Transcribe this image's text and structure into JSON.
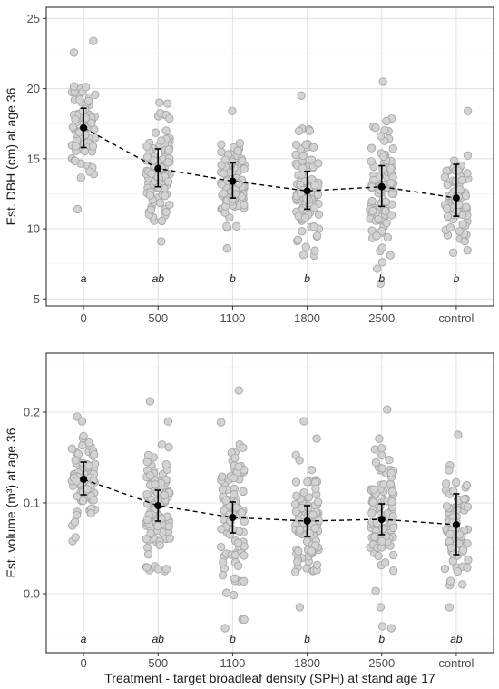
{
  "chart_data": [
    {
      "type": "scatter",
      "categories": [
        "0",
        "500",
        "1100",
        "1800",
        "2500",
        "control"
      ],
      "ylabel": "Est. DBH (cm) at age 36",
      "xlabel": "",
      "ylim": [
        4.5,
        25.8
      ],
      "yticks": [
        5,
        10,
        15,
        20,
        25
      ],
      "grid": true,
      "legend": "none",
      "means": [
        17.2,
        14.3,
        13.4,
        12.7,
        13.0,
        12.2
      ],
      "lower": [
        15.8,
        13.0,
        12.2,
        11.4,
        11.6,
        10.9
      ],
      "upper": [
        18.6,
        15.7,
        14.7,
        14.1,
        14.5,
        14.6
      ],
      "letters": [
        "a",
        "ab",
        "b",
        "b",
        "b",
        "b"
      ],
      "points_range": [
        [
          11.4,
          23.4
        ],
        [
          9.1,
          19.0
        ],
        [
          8.6,
          18.4
        ],
        [
          8.1,
          19.5
        ],
        [
          6.1,
          20.5
        ],
        [
          8.3,
          18.4
        ]
      ],
      "n_points": [
        85,
        110,
        95,
        100,
        100,
        70
      ]
    },
    {
      "type": "scatter",
      "categories": [
        "0",
        "500",
        "1100",
        "1800",
        "2500",
        "control"
      ],
      "ylabel": "Est. volume (m³) at age 36",
      "xlabel": "Treatment - target broadleaf density (SPH) at stand age 17",
      "ylim": [
        -0.065,
        0.265
      ],
      "yticks": [
        0.0,
        0.1,
        0.2
      ],
      "ytick_labels": [
        "0.0",
        "0.1",
        "0.2"
      ],
      "grid": true,
      "legend": "none",
      "means": [
        0.126,
        0.097,
        0.084,
        0.08,
        0.082,
        0.076
      ],
      "lower": [
        0.109,
        0.08,
        0.067,
        0.063,
        0.065,
        0.043
      ],
      "upper": [
        0.145,
        0.114,
        0.101,
        0.097,
        0.099,
        0.11
      ],
      "letters": [
        "a",
        "ab",
        "b",
        "b",
        "b",
        "ab"
      ],
      "points_range": [
        [
          0.058,
          0.195
        ],
        [
          0.025,
          0.212
        ],
        [
          -0.038,
          0.224
        ],
        [
          -0.015,
          0.19
        ],
        [
          -0.038,
          0.203
        ],
        [
          -0.015,
          0.175
        ]
      ],
      "n_points": [
        85,
        110,
        95,
        100,
        100,
        70
      ]
    }
  ]
}
